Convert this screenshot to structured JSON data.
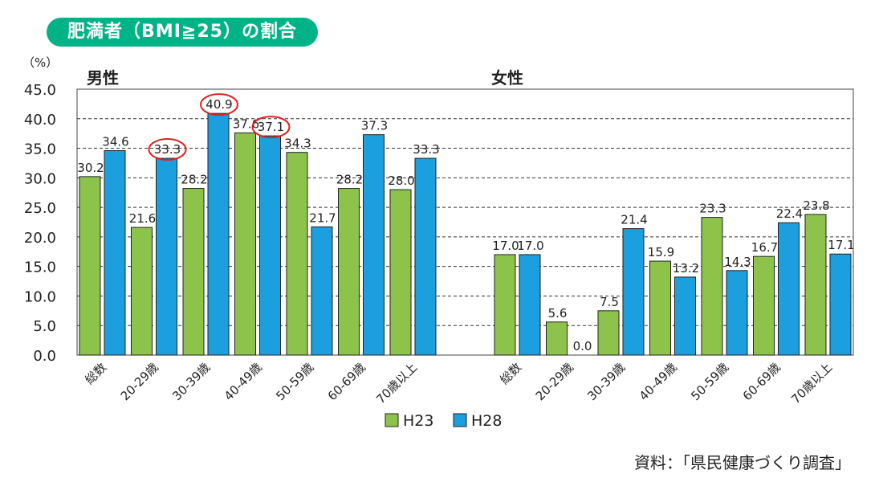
{
  "title": "肥満者（BMI≧25）の割合",
  "source": "資料：「県民健康づくり調査」",
  "colors": {
    "accent": "#00b386",
    "h23": "#8dc34a",
    "h28": "#1b9fde",
    "highlight": "#e02020"
  },
  "chart_data": {
    "type": "bar",
    "yunit": "（%）",
    "ylim": [
      0,
      45
    ],
    "yticks": [
      "0.0",
      "5.0",
      "10.0",
      "15.0",
      "20.0",
      "25.0",
      "30.0",
      "35.0",
      "40.0",
      "45.0"
    ],
    "grid": true,
    "legend_position": "bottom-center",
    "legend": [
      "H23",
      "H28"
    ],
    "panels": [
      {
        "label": "男性",
        "categories": [
          "総数",
          "20-29歳",
          "30-39歳",
          "40-49歳",
          "50-59歳",
          "60-69歳",
          "70歳以上"
        ],
        "series": [
          {
            "name": "H23",
            "values": [
              30.2,
              21.6,
              28.2,
              37.6,
              34.3,
              28.2,
              28.0
            ]
          },
          {
            "name": "H28",
            "values": [
              34.6,
              33.3,
              40.9,
              37.1,
              21.7,
              37.3,
              33.3
            ]
          }
        ],
        "highlighted": [
          {
            "category": "20-29歳",
            "series": "H28"
          },
          {
            "category": "30-39歳",
            "series": "H28"
          },
          {
            "category": "40-49歳",
            "series": "H28"
          }
        ]
      },
      {
        "label": "女性",
        "categories": [
          "総数",
          "20-29歳",
          "30-39歳",
          "40-49歳",
          "50-59歳",
          "60-69歳",
          "70歳以上"
        ],
        "series": [
          {
            "name": "H23",
            "values": [
              17.0,
              5.6,
              7.5,
              15.9,
              23.3,
              16.7,
              23.8
            ]
          },
          {
            "name": "H28",
            "values": [
              17.0,
              0.0,
              21.4,
              13.2,
              14.3,
              22.4,
              17.1
            ]
          }
        ],
        "highlighted": []
      }
    ]
  }
}
